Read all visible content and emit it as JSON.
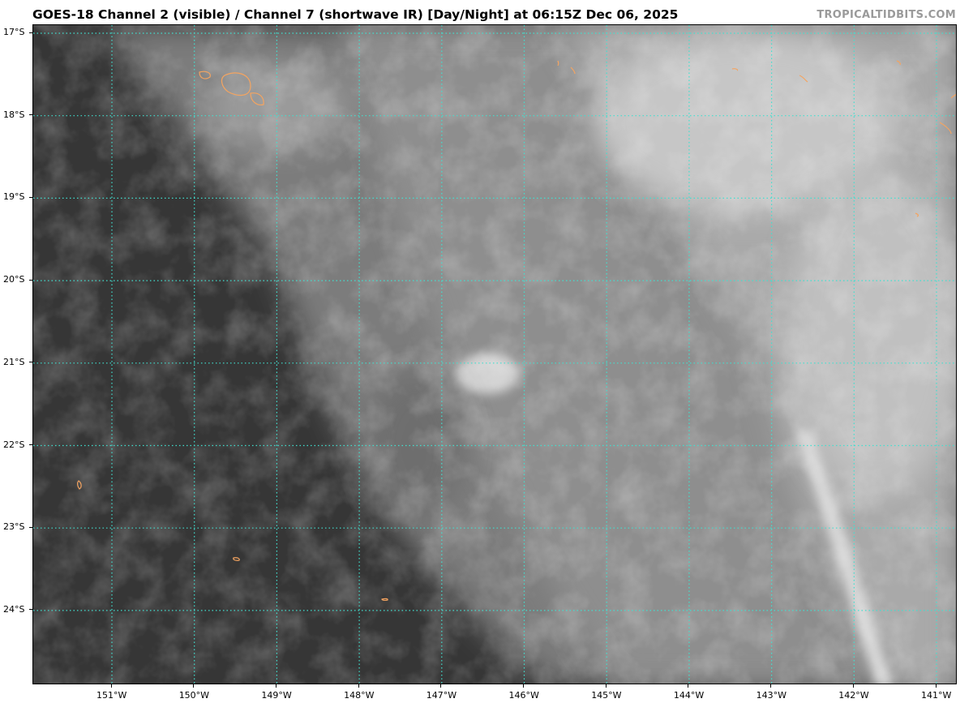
{
  "title": "GOES-18 Channel 2 (visible) / Channel 7 (shortwave IR) [Day/Night] at 06:15Z Dec 06, 2025",
  "credit": "TROPICALTIDBITS.COM",
  "map": {
    "grid_color": "#40e0d0",
    "coastline_color": "#f4a460",
    "latitudes": [
      {
        "value": -17,
        "label": "17°S"
      },
      {
        "value": -18,
        "label": "18°S"
      },
      {
        "value": -19,
        "label": "19°S"
      },
      {
        "value": -20,
        "label": "20°S"
      },
      {
        "value": -21,
        "label": "21°S"
      },
      {
        "value": -22,
        "label": "22°S"
      },
      {
        "value": -23,
        "label": "23°S"
      },
      {
        "value": -24,
        "label": "24°S"
      }
    ],
    "longitudes": [
      {
        "value": -151,
        "label": "151°W"
      },
      {
        "value": -150,
        "label": "150°W"
      },
      {
        "value": -149,
        "label": "149°W"
      },
      {
        "value": -148,
        "label": "148°W"
      },
      {
        "value": -147,
        "label": "147°W"
      },
      {
        "value": -146,
        "label": "146°W"
      },
      {
        "value": -145,
        "label": "145°W"
      },
      {
        "value": -144,
        "label": "144°W"
      },
      {
        "value": -143,
        "label": "143°W"
      },
      {
        "value": -142,
        "label": "142°W"
      },
      {
        "value": -141,
        "label": "141°W"
      }
    ]
  }
}
